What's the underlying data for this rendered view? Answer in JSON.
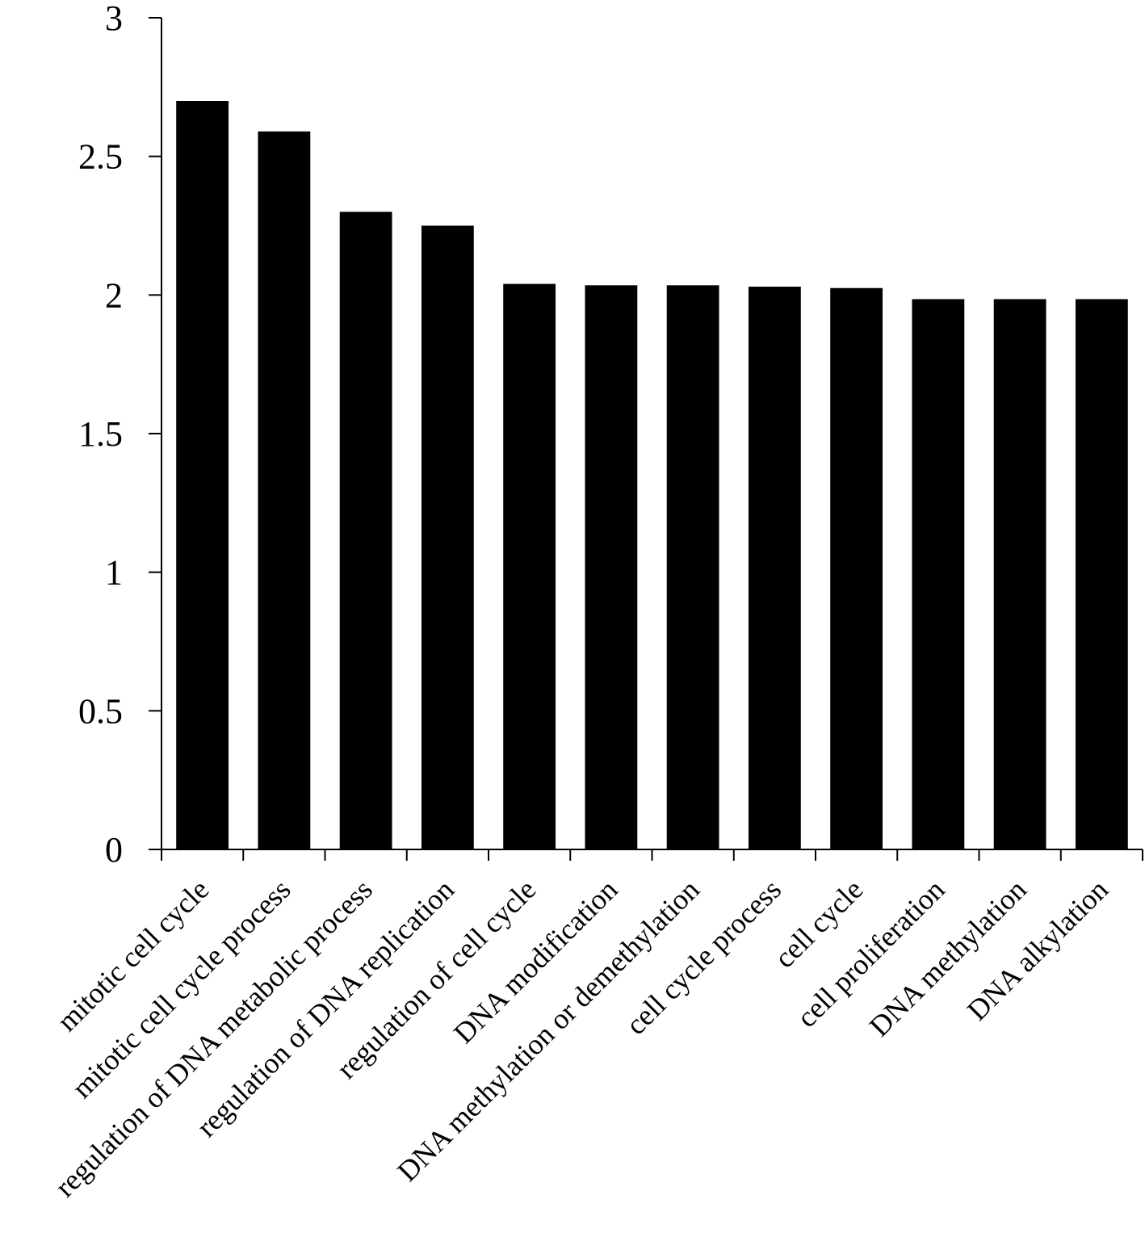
{
  "chart_data": {
    "type": "bar",
    "title": "",
    "xlabel": "",
    "ylabel": "",
    "ylim": [
      0,
      3
    ],
    "yticks": [
      0,
      0.5,
      1,
      1.5,
      2,
      2.5,
      3
    ],
    "ytick_labels": [
      "0",
      "0.5",
      "1",
      "1.5",
      "2",
      "2.5",
      "3"
    ],
    "grid": false,
    "legend": "none",
    "bar_color": "#000000",
    "categories": [
      "mitotic cell cycle",
      "mitotic cell cycle process",
      "regulation of DNA metabolic process",
      "regulation of DNA replication",
      "regulation of cell cycle",
      "DNA modification",
      "DNA methylation or demethylation",
      "cell cycle process",
      "cell cycle",
      "cell proliferation",
      "DNA methylation",
      "DNA alkylation"
    ],
    "values": [
      2.7,
      2.59,
      2.3,
      2.25,
      2.04,
      2.035,
      2.035,
      2.03,
      2.025,
      1.985,
      1.985,
      1.985
    ]
  }
}
